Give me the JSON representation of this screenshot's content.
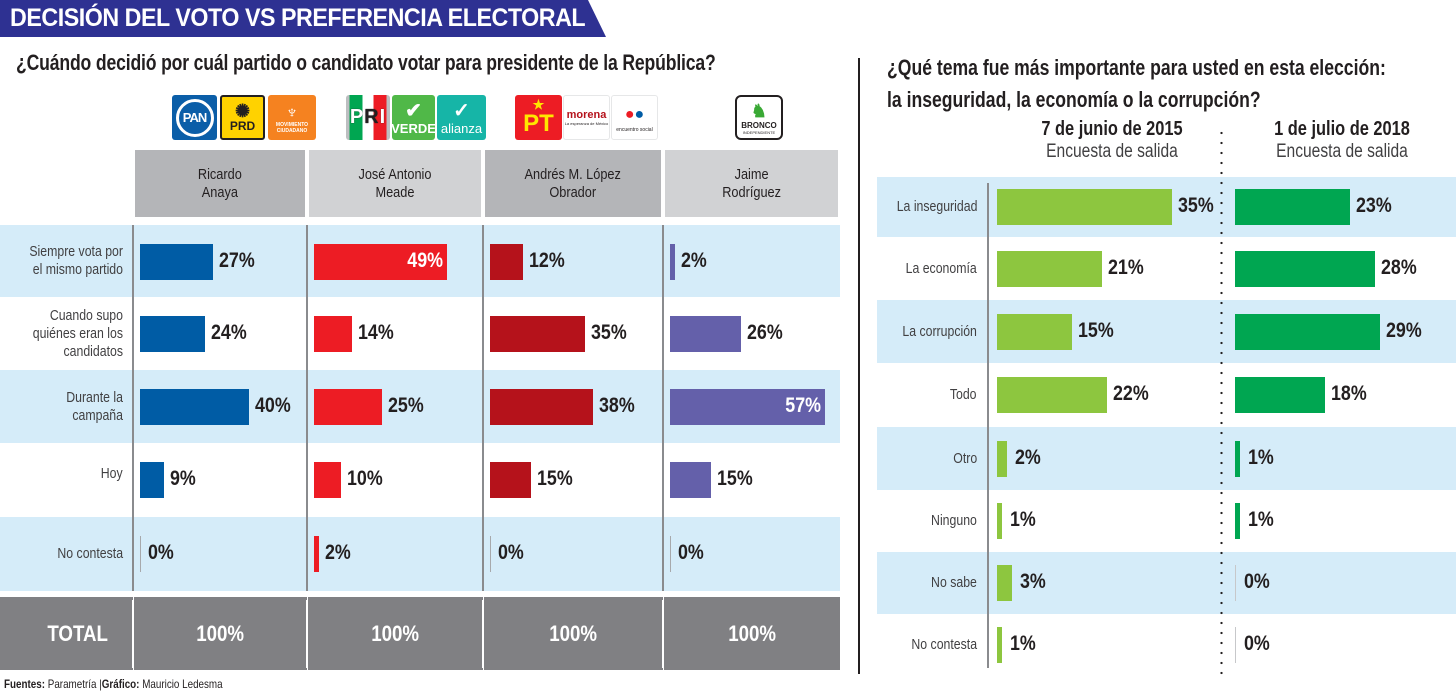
{
  "banner": {
    "title": "DECISIÓN DEL VOTO VS PREFERENCIA ELECTORAL",
    "color": "#2e3192"
  },
  "left_chart": {
    "question": "¿Cuándo decidió por cuál partido o candidato votar para presidente de la República?",
    "logos": [
      {
        "name": "PAN",
        "label": "PAN",
        "bg": "#0b5ea8",
        "fg": "#ffffff"
      },
      {
        "name": "PRD",
        "label": "PRD",
        "bg": "#ffd200",
        "fg": "#231f20"
      },
      {
        "name": "MC",
        "label": "MOVIMIENTO CIUDADANO",
        "bg": "#f58220",
        "fg": "#ffffff"
      },
      {
        "name": "PRI",
        "label": "PRI",
        "bg": "#ffffff",
        "fg": "#231f20"
      },
      {
        "name": "VERDE",
        "label": "VERDE",
        "bg": "#50b848",
        "fg": "#ffffff"
      },
      {
        "name": "NUEVA ALIANZA",
        "label": "alianza",
        "bg": "#16b5a7",
        "fg": "#ffffff"
      },
      {
        "name": "PT",
        "label": "PT",
        "bg": "#ed1c24",
        "fg": "#ffe600"
      },
      {
        "name": "MORENA",
        "label": "morena",
        "sublabel": "La esperanza de México",
        "bg": "#ffffff",
        "fg": "#b5121b"
      },
      {
        "name": "ENCUENTRO SOCIAL",
        "label": "encuentro social",
        "bg": "#ffffff",
        "fg": "#231f20"
      },
      {
        "name": "BRONCO",
        "label": "BRONCO",
        "sublabel": "INDEPENDIENTE",
        "bg": "#ffffff",
        "fg": "#231f20"
      }
    ],
    "total_label": "TOTAL"
  },
  "right_chart": {
    "question_line1": "¿Qué tema fue más importante para usted en esta elección:",
    "question_line2": "la inseguridad, la economía o la corrupción?",
    "periods": [
      {
        "date": "7 de junio de 2015",
        "subtitle": "Encuesta de salida"
      },
      {
        "date": "1 de julio de 2018",
        "subtitle": "Encuesta de salida"
      }
    ]
  },
  "footer": {
    "sources_label": "Fuentes:",
    "sources": "Parametría",
    "sep": "|",
    "graphic_label": "Gráfico:",
    "graphic": "Mauricio Ledesma"
  },
  "chart_data": [
    {
      "type": "bar",
      "orientation": "horizontal",
      "title": "¿Cuándo decidió por cuál partido o candidato votar para presidente de la República?",
      "categories": [
        "Siempre vota por el mismo partido",
        "Cuando supo quiénes eran los candidatos",
        "Durante la campaña",
        "Hoy",
        "No contesta"
      ],
      "series": [
        {
          "name": "Ricardo Anaya",
          "header": [
            "Ricardo",
            "Anaya"
          ],
          "color": "#005ca5",
          "values": [
            27,
            24,
            40,
            9,
            0
          ],
          "total": "100%"
        },
        {
          "name": "José Antonio Meade",
          "header": [
            "José Antonio",
            "Meade"
          ],
          "color": "#ed1c24",
          "values": [
            49,
            14,
            25,
            10,
            2
          ],
          "total": "100%"
        },
        {
          "name": "Andrés M. López Obrador",
          "header": [
            "Andrés M. López",
            "Obrador"
          ],
          "color": "#b5121b",
          "values": [
            12,
            35,
            38,
            15,
            0
          ],
          "total": "100%"
        },
        {
          "name": "Jaime Rodríguez",
          "header": [
            "Jaime",
            "Rodríguez"
          ],
          "color": "#6460aa",
          "values": [
            2,
            26,
            57,
            15,
            0
          ],
          "total": "100%"
        }
      ],
      "unit": "%",
      "xlim": [
        0,
        60
      ]
    },
    {
      "type": "bar",
      "orientation": "horizontal",
      "title": "¿Qué tema fue más importante para usted en esta elección: la inseguridad, la economía o la corrupción?",
      "categories": [
        "La inseguridad",
        "La economía",
        "La corrupción",
        "Todo",
        "Otro",
        "Ninguno",
        "No sabe",
        "No contesta"
      ],
      "series": [
        {
          "name": "7 de junio de 2015",
          "color": "#8dc63f",
          "values": [
            35,
            21,
            15,
            22,
            2,
            1,
            3,
            1
          ]
        },
        {
          "name": "1 de julio de 2018",
          "color": "#00a651",
          "values": [
            23,
            28,
            29,
            18,
            1,
            1,
            0,
            0
          ]
        }
      ],
      "unit": "%",
      "xlim": [
        0,
        40
      ]
    }
  ]
}
